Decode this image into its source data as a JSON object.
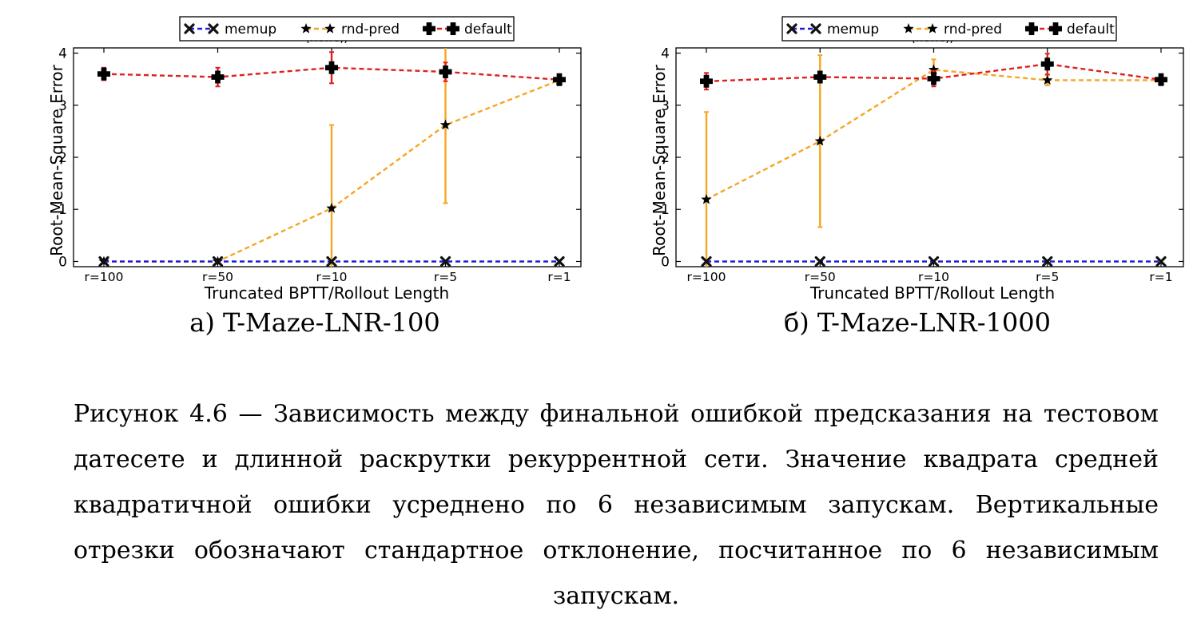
{
  "legend": {
    "items": [
      {
        "label": "memup",
        "color": "#1f1fd6",
        "marker": "x-icon"
      },
      {
        "label": "rnd-pred",
        "color": "#f5a623",
        "marker": "star-icon"
      },
      {
        "label": "default",
        "color": "#e02020",
        "marker": "plus-icon"
      }
    ]
  },
  "chart_data": [
    {
      "type": "line",
      "panel_label": "а) T-Maze-LNR-100",
      "title": "(none,)",
      "xlabel": "Truncated BPTT/Rollout Length",
      "ylabel": "Root-Mean-Square Error",
      "categories": [
        "r=100",
        "r=50",
        "r=10",
        "r=5",
        "r=1"
      ],
      "ylim": [
        -0.1,
        4.1
      ],
      "yticks": [
        0,
        1,
        2,
        3,
        4
      ],
      "series": [
        {
          "name": "memup",
          "color": "#1f1fd6",
          "marker": "x",
          "values": [
            0,
            0,
            0,
            0,
            0
          ],
          "errors": [
            0,
            0,
            0,
            0,
            0
          ]
        },
        {
          "name": "rnd-pred",
          "color": "#f5a623",
          "marker": "star",
          "values": [
            0,
            0,
            1.02,
            2.62,
            3.48
          ],
          "errors": [
            0,
            0,
            1.6,
            1.5,
            0.03
          ]
        },
        {
          "name": "default",
          "color": "#e02020",
          "marker": "plus",
          "values": [
            3.6,
            3.54,
            3.72,
            3.64,
            3.49
          ],
          "errors": [
            0.12,
            0.18,
            0.3,
            0.18,
            0.03
          ]
        }
      ]
    },
    {
      "type": "line",
      "panel_label": "б) T-Maze-LNR-1000",
      "title": "(none,)",
      "xlabel": "Truncated BPTT/Rollout Length",
      "ylabel": "Root-Mean-Square Error",
      "categories": [
        "r=100",
        "r=50",
        "r=10",
        "r=5",
        "r=1"
      ],
      "ylim": [
        -0.1,
        4.1
      ],
      "yticks": [
        0,
        1,
        2,
        3,
        4
      ],
      "series": [
        {
          "name": "memup",
          "color": "#1f1fd6",
          "marker": "x",
          "values": [
            0,
            0,
            0,
            0,
            0
          ],
          "errors": [
            0,
            0,
            0,
            0,
            0
          ]
        },
        {
          "name": "rnd-pred",
          "color": "#f5a623",
          "marker": "star",
          "values": [
            1.19,
            2.31,
            3.68,
            3.48,
            3.48
          ],
          "errors": [
            1.68,
            1.65,
            0.2,
            0.1,
            0.03
          ]
        },
        {
          "name": "default",
          "color": "#e02020",
          "marker": "plus",
          "values": [
            3.46,
            3.54,
            3.51,
            3.79,
            3.49
          ],
          "errors": [
            0.16,
            0.1,
            0.15,
            0.2,
            0.03
          ]
        }
      ]
    }
  ],
  "caption": "Рисунок 4.6 — Зависимость между финальной ошибкой предсказания на тестовом датесете и длинной раскрутки рекуррентной сети. Значение квадрата средней квадратичной ошибки усреднено по 6 независимым запускам. Вертикальные отрезки обозначают стандартное отклонение, посчитанное по 6 независимым запускам."
}
